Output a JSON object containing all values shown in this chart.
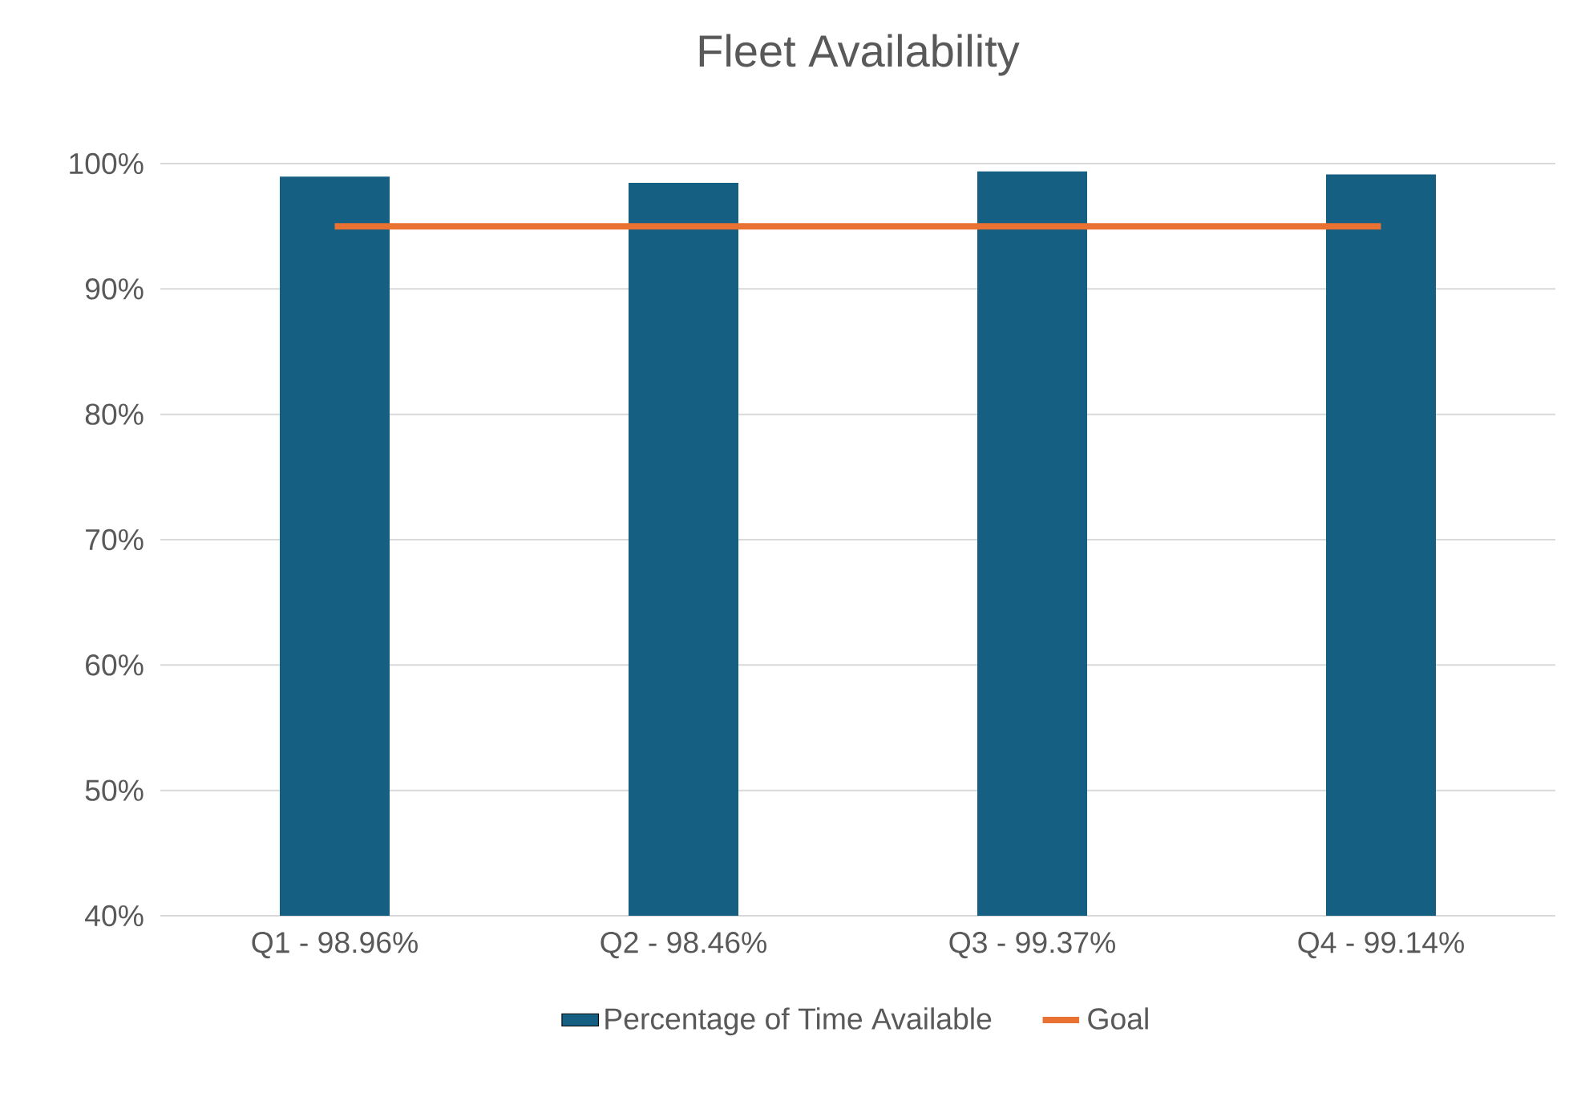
{
  "chart_data": {
    "type": "bar",
    "title": "Fleet Availability",
    "categories": [
      "Q1 - 98.96%",
      "Q2 - 98.46%",
      "Q3 - 99.37%",
      "Q4 - 99.14%"
    ],
    "series": [
      {
        "name": "Percentage of Time Available",
        "type": "bar",
        "color": "#156082",
        "values": [
          98.96,
          98.46,
          99.37,
          99.14
        ]
      },
      {
        "name": "Goal",
        "type": "line",
        "color": "#e97132",
        "values": [
          95,
          95,
          95,
          95
        ]
      }
    ],
    "ylim": [
      40,
      100
    ],
    "yticks": [
      {
        "value": 40,
        "label": "40%"
      },
      {
        "value": 50,
        "label": "50%"
      },
      {
        "value": 60,
        "label": "60%"
      },
      {
        "value": 70,
        "label": "70%"
      },
      {
        "value": 80,
        "label": "80%"
      },
      {
        "value": 90,
        "label": "90%"
      },
      {
        "value": 100,
        "label": "100%"
      }
    ],
    "grid": "y",
    "legend": "bottom",
    "marker": "none"
  }
}
